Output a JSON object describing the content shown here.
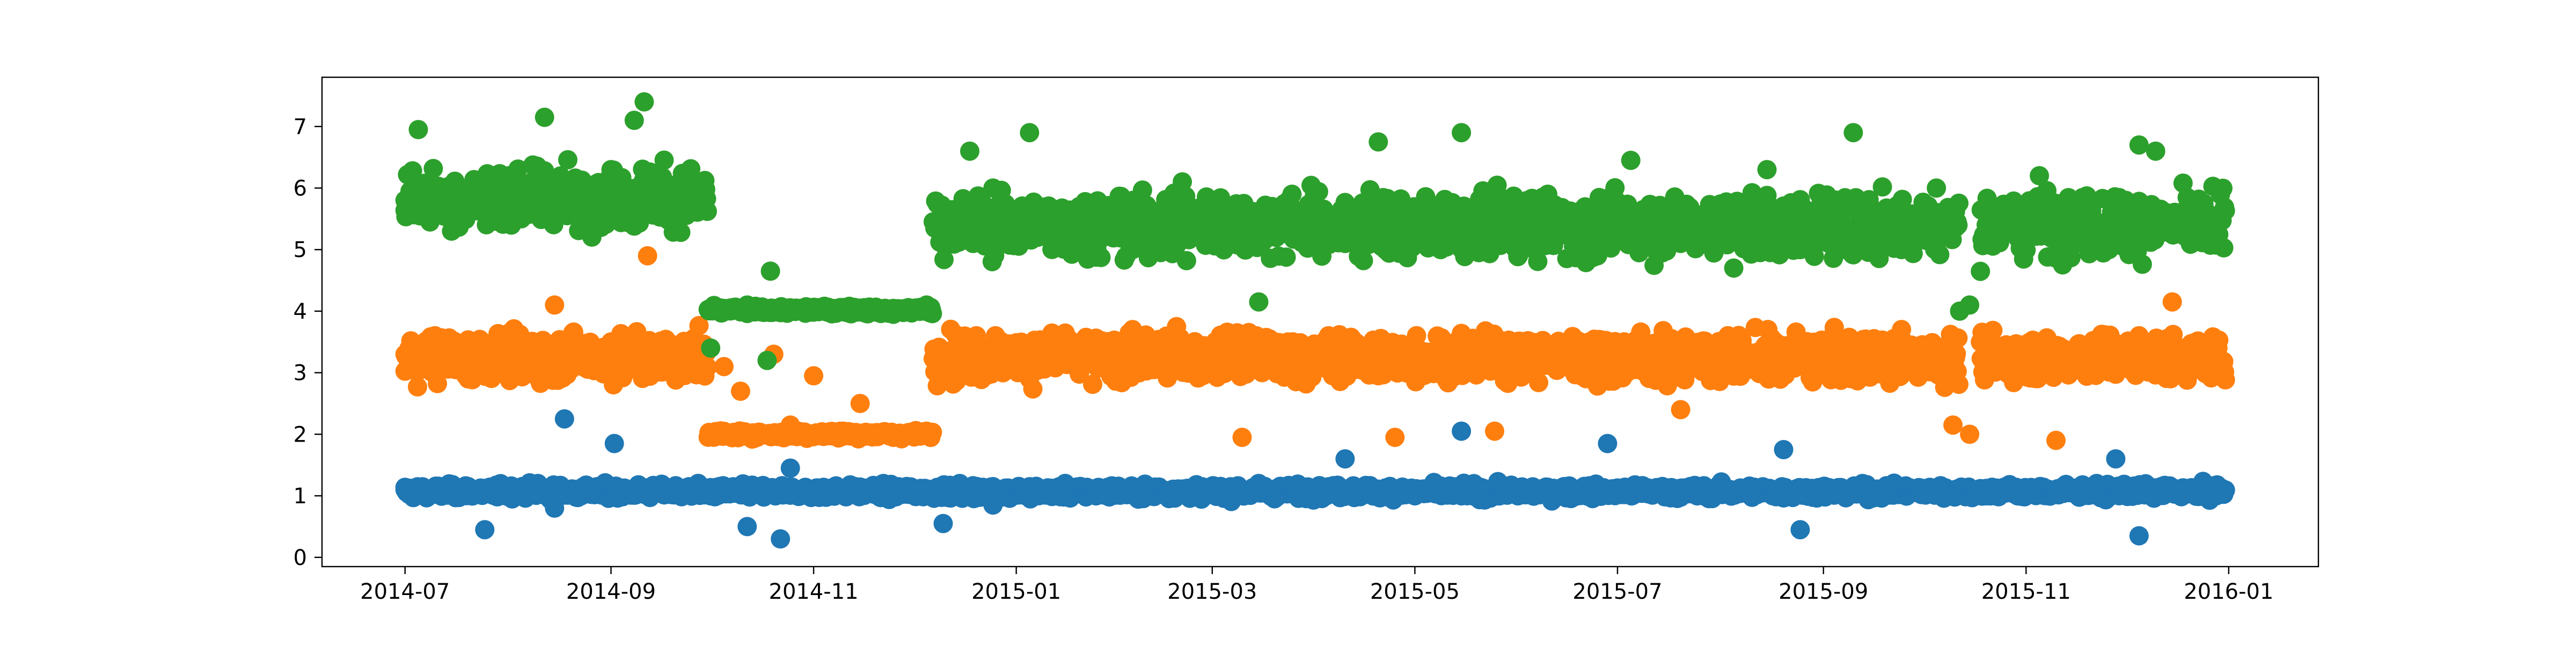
{
  "chart_data": {
    "type": "scatter",
    "title": "",
    "xlabel": "",
    "ylabel": "",
    "x_range": [
      "2014-06-06",
      "2016-01-28"
    ],
    "ylim": [
      -0.15,
      7.8
    ],
    "x_ticks": [
      "2014-07",
      "2014-09",
      "2014-11",
      "2015-01",
      "2015-03",
      "2015-05",
      "2015-07",
      "2015-09",
      "2015-11",
      "2016-01"
    ],
    "y_ticks": [
      "0",
      "1",
      "2",
      "3",
      "4",
      "5",
      "6",
      "7"
    ],
    "grid": false,
    "legend": "none",
    "series": [
      {
        "color": "#1f77b4",
        "points": [
          [
            "2014-07-01",
            1.1
          ],
          [
            "2014-07-10",
            1.05
          ],
          [
            "2014-07-20",
            1.15
          ],
          [
            "2014-07-25",
            0.45
          ],
          [
            "2014-08-01",
            1.1
          ],
          [
            "2014-08-10",
            1.2
          ],
          [
            "2014-08-15",
            0.8
          ],
          [
            "2014-08-18",
            2.25
          ],
          [
            "2014-08-25",
            1.1
          ],
          [
            "2014-09-02",
            1.85
          ],
          [
            "2014-09-10",
            1.05
          ],
          [
            "2014-09-20",
            1.1
          ],
          [
            "2014-10-01",
            1.0
          ],
          [
            "2014-10-12",
            0.5
          ],
          [
            "2014-10-22",
            0.3
          ],
          [
            "2014-10-25",
            1.45
          ],
          [
            "2014-11-05",
            1.05
          ],
          [
            "2014-11-15",
            1.1
          ],
          [
            "2014-11-25",
            1.0
          ],
          [
            "2014-12-05",
            1.1
          ],
          [
            "2014-12-10",
            0.55
          ],
          [
            "2014-12-15",
            1.2
          ],
          [
            "2014-12-25",
            0.85
          ],
          [
            "2015-01-05",
            1.1
          ],
          [
            "2015-01-15",
            1.05
          ],
          [
            "2015-01-25",
            1.0
          ],
          [
            "2015-02-05",
            1.1
          ],
          [
            "2015-02-18",
            1.05
          ],
          [
            "2015-03-01",
            1.1
          ],
          [
            "2015-03-15",
            1.2
          ],
          [
            "2015-04-01",
            1.05
          ],
          [
            "2015-04-10",
            1.6
          ],
          [
            "2015-04-20",
            1.1
          ],
          [
            "2015-05-01",
            1.0
          ],
          [
            "2015-05-15",
            2.05
          ],
          [
            "2015-05-20",
            1.1
          ],
          [
            "2015-06-01",
            1.0
          ],
          [
            "2015-06-15",
            1.15
          ],
          [
            "2015-06-28",
            1.85
          ],
          [
            "2015-07-10",
            1.1
          ],
          [
            "2015-07-25",
            1.0
          ],
          [
            "2015-08-10",
            1.1
          ],
          [
            "2015-08-20",
            1.75
          ],
          [
            "2015-08-25",
            0.45
          ],
          [
            "2015-09-05",
            1.1
          ],
          [
            "2015-09-20",
            1.05
          ],
          [
            "2015-10-01",
            1.1
          ],
          [
            "2015-10-20",
            1.0
          ],
          [
            "2015-11-01",
            1.1
          ],
          [
            "2015-11-15",
            1.05
          ],
          [
            "2015-11-28",
            1.6
          ],
          [
            "2015-12-05",
            0.35
          ],
          [
            "2015-12-15",
            1.1
          ],
          [
            "2015-12-28",
            1.05
          ]
        ]
      },
      {
        "color": "#ff7f0e",
        "points": [
          [
            "2014-07-01",
            3.3
          ],
          [
            "2014-07-10",
            3.6
          ],
          [
            "2014-07-20",
            2.9
          ],
          [
            "2014-08-01",
            3.4
          ],
          [
            "2014-08-15",
            4.1
          ],
          [
            "2014-08-20",
            3.1
          ],
          [
            "2014-09-01",
            3.5
          ],
          [
            "2014-09-12",
            4.9
          ],
          [
            "2014-09-20",
            3.2
          ],
          [
            "2014-10-01",
            2.0
          ],
          [
            "2014-10-05",
            3.1
          ],
          [
            "2014-10-10",
            2.7
          ],
          [
            "2014-10-15",
            1.95
          ],
          [
            "2014-10-20",
            3.3
          ],
          [
            "2014-10-25",
            2.15
          ],
          [
            "2014-11-01",
            2.95
          ],
          [
            "2014-11-10",
            2.05
          ],
          [
            "2014-11-15",
            2.5
          ],
          [
            "2014-11-25",
            1.95
          ],
          [
            "2014-12-05",
            2.05
          ],
          [
            "2014-12-10",
            3.3
          ],
          [
            "2014-12-20",
            3.6
          ],
          [
            "2015-01-05",
            2.9
          ],
          [
            "2015-01-20",
            3.3
          ],
          [
            "2015-02-05",
            3.7
          ],
          [
            "2015-02-20",
            3.1
          ],
          [
            "2015-03-05",
            3.4
          ],
          [
            "2015-03-10",
            1.95
          ],
          [
            "2015-03-20",
            3.2
          ],
          [
            "2015-04-05",
            3.6
          ],
          [
            "2015-04-20",
            2.95
          ],
          [
            "2015-04-25",
            1.95
          ],
          [
            "2015-05-05",
            3.3
          ],
          [
            "2015-05-25",
            2.05
          ],
          [
            "2015-06-05",
            3.5
          ],
          [
            "2015-06-20",
            3.0
          ],
          [
            "2015-07-05",
            3.3
          ],
          [
            "2015-07-20",
            2.4
          ],
          [
            "2015-08-05",
            3.4
          ],
          [
            "2015-08-20",
            3.0
          ],
          [
            "2015-09-05",
            3.6
          ],
          [
            "2015-09-20",
            3.2
          ],
          [
            "2015-10-05",
            3.3
          ],
          [
            "2015-10-10",
            2.15
          ],
          [
            "2015-10-15",
            2.0
          ],
          [
            "2015-10-20",
            3.2
          ],
          [
            "2015-11-05",
            3.5
          ],
          [
            "2015-11-10",
            1.9
          ],
          [
            "2015-11-20",
            3.1
          ],
          [
            "2015-12-05",
            3.6
          ],
          [
            "2015-12-15",
            4.15
          ],
          [
            "2015-12-28",
            3.2
          ]
        ]
      },
      {
        "color": "#2ca02c",
        "points": [
          [
            "2014-07-01",
            5.8
          ],
          [
            "2014-07-05",
            6.95
          ],
          [
            "2014-07-15",
            5.3
          ],
          [
            "2014-07-25",
            6.1
          ],
          [
            "2014-08-05",
            5.5
          ],
          [
            "2014-08-12",
            7.15
          ],
          [
            "2014-08-20",
            5.9
          ],
          [
            "2014-09-01",
            6.3
          ],
          [
            "2014-09-08",
            7.1
          ],
          [
            "2014-09-11",
            7.4
          ],
          [
            "2014-09-20",
            5.6
          ],
          [
            "2014-10-01",
            3.4
          ],
          [
            "2014-10-05",
            4.0
          ],
          [
            "2014-10-12",
            4.1
          ],
          [
            "2014-10-18",
            3.2
          ],
          [
            "2014-10-19",
            4.65
          ],
          [
            "2014-11-01",
            4.0
          ],
          [
            "2014-11-15",
            4.05
          ],
          [
            "2014-11-25",
            3.95
          ],
          [
            "2014-12-05",
            4.1
          ],
          [
            "2014-12-10",
            5.6
          ],
          [
            "2014-12-18",
            6.6
          ],
          [
            "2015-01-01",
            5.2
          ],
          [
            "2015-01-05",
            6.9
          ],
          [
            "2015-01-20",
            5.7
          ],
          [
            "2015-02-05",
            5.0
          ],
          [
            "2015-02-20",
            6.1
          ],
          [
            "2015-03-05",
            5.4
          ],
          [
            "2015-03-15",
            4.15
          ],
          [
            "2015-03-25",
            5.9
          ],
          [
            "2015-04-10",
            5.1
          ],
          [
            "2015-04-20",
            6.75
          ],
          [
            "2015-05-01",
            5.5
          ],
          [
            "2015-05-15",
            6.9
          ],
          [
            "2015-05-25",
            5.2
          ],
          [
            "2015-06-10",
            5.9
          ],
          [
            "2015-06-25",
            4.9
          ],
          [
            "2015-07-05",
            6.45
          ],
          [
            "2015-07-20",
            5.1
          ],
          [
            "2015-08-05",
            4.7
          ],
          [
            "2015-08-15",
            6.3
          ],
          [
            "2015-08-25",
            5.0
          ],
          [
            "2015-09-05",
            5.8
          ],
          [
            "2015-09-10",
            6.9
          ],
          [
            "2015-09-25",
            5.4
          ],
          [
            "2015-10-05",
            6.0
          ],
          [
            "2015-10-12",
            4.0
          ],
          [
            "2015-10-15",
            4.1
          ],
          [
            "2015-10-25",
            5.5
          ],
          [
            "2015-11-05",
            6.2
          ],
          [
            "2015-11-20",
            5.0
          ],
          [
            "2015-12-01",
            5.8
          ],
          [
            "2015-12-05",
            6.7
          ],
          [
            "2015-12-10",
            6.6
          ],
          [
            "2015-12-20",
            5.3
          ],
          [
            "2015-12-30",
            5.6
          ]
        ]
      }
    ]
  }
}
